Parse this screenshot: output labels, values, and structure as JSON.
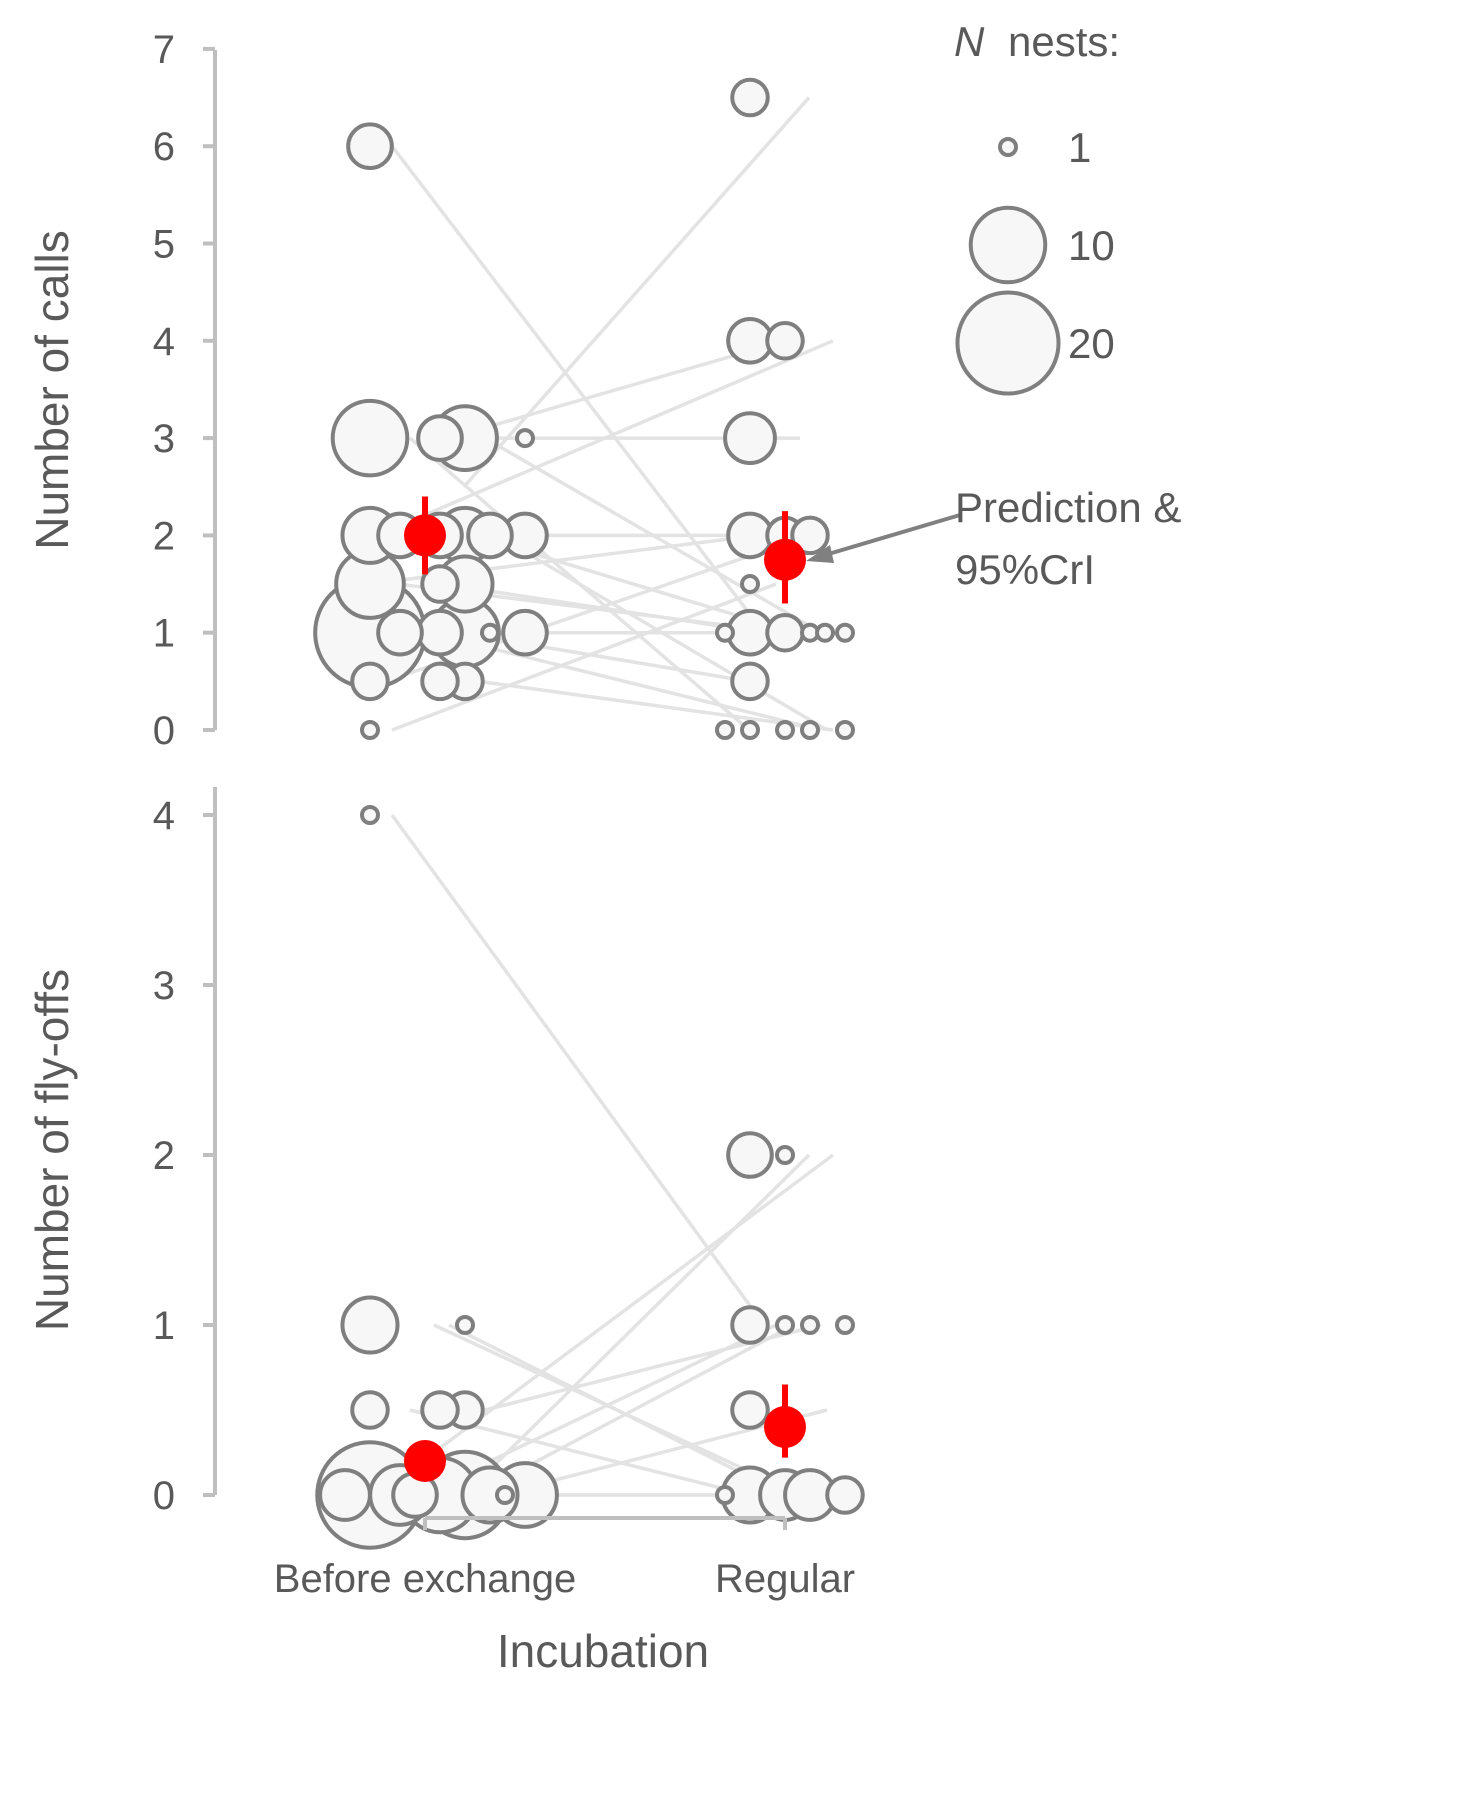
{
  "chart_data": [
    {
      "type": "scatter",
      "panel": "top",
      "ylabel": "Number of calls",
      "ylim": [
        0,
        7
      ],
      "yticks": [
        "0",
        "1",
        "2",
        "3",
        "4",
        "5",
        "6",
        "7"
      ],
      "categories": [
        "Before exchange",
        "Regular"
      ],
      "observations": {
        "Before exchange": [
          {
            "y": 6,
            "n": 3
          },
          {
            "y": 3,
            "n": 10
          },
          {
            "y": 3,
            "n": 7
          },
          {
            "y": 3,
            "n": 3
          },
          {
            "y": 3,
            "n": 1
          },
          {
            "y": 2,
            "n": 3
          },
          {
            "y": 2,
            "n": 3
          },
          {
            "y": 2,
            "n": 3
          },
          {
            "y": 2,
            "n": 3
          },
          {
            "y": 2,
            "n": 5
          },
          {
            "y": 2,
            "n": 5
          },
          {
            "y": 1.5,
            "n": 8
          },
          {
            "y": 1.5,
            "n": 5
          },
          {
            "y": 1.5,
            "n": 2
          },
          {
            "y": 1,
            "n": 24
          },
          {
            "y": 1,
            "n": 8
          },
          {
            "y": 1,
            "n": 3
          },
          {
            "y": 1,
            "n": 3
          },
          {
            "y": 1,
            "n": 3
          },
          {
            "y": 1,
            "n": 1
          },
          {
            "y": 0.5,
            "n": 2
          },
          {
            "y": 0.5,
            "n": 2
          },
          {
            "y": 0.5,
            "n": 2
          },
          {
            "y": 0,
            "n": 1
          }
        ],
        "Regular": [
          {
            "y": 6.5,
            "n": 2
          },
          {
            "y": 4,
            "n": 2
          },
          {
            "y": 4,
            "n": 3
          },
          {
            "y": 3,
            "n": 4
          },
          {
            "y": 2,
            "n": 2
          },
          {
            "y": 2,
            "n": 3
          },
          {
            "y": 2,
            "n": 2
          },
          {
            "y": 1.5,
            "n": 1
          },
          {
            "y": 1,
            "n": 1
          },
          {
            "y": 1,
            "n": 1
          },
          {
            "y": 1,
            "n": 1
          },
          {
            "y": 1,
            "n": 2
          },
          {
            "y": 1,
            "n": 3
          },
          {
            "y": 1,
            "n": 1
          },
          {
            "y": 0.5,
            "n": 2
          },
          {
            "y": 0,
            "n": 1
          },
          {
            "y": 0,
            "n": 1
          },
          {
            "y": 0,
            "n": 1
          },
          {
            "y": 0,
            "n": 1
          },
          {
            "y": 0,
            "n": 1
          }
        ]
      },
      "paired_lines": [
        [
          6,
          1
        ],
        [
          3,
          4
        ],
        [
          3,
          3
        ],
        [
          3,
          1
        ],
        [
          3,
          0
        ],
        [
          2.5,
          6.5
        ],
        [
          2,
          4
        ],
        [
          2,
          2
        ],
        [
          2,
          1
        ],
        [
          2,
          0
        ],
        [
          1.5,
          2
        ],
        [
          1.5,
          1
        ],
        [
          1.5,
          1
        ],
        [
          1,
          1
        ],
        [
          1,
          0
        ],
        [
          1,
          0.5
        ],
        [
          0.5,
          2
        ],
        [
          0.5,
          0
        ],
        [
          0,
          1.5
        ]
      ],
      "predictions": [
        {
          "category": "Before exchange",
          "value": 2.0,
          "lower": 1.6,
          "upper": 2.4
        },
        {
          "category": "Regular",
          "value": 1.75,
          "lower": 1.3,
          "upper": 2.25
        }
      ],
      "annotation": [
        "Prediction &",
        "95%CrI"
      ],
      "legend": {
        "title": "nests:",
        "title_italic": "N",
        "entries": [
          {
            "label": "1",
            "n": 1
          },
          {
            "label": "10",
            "n": 10
          },
          {
            "label": "20",
            "n": 20
          }
        ]
      },
      "colors": {
        "point_stroke": "#7f7f7f",
        "point_fill": "#f7f7f7",
        "line": "#e3e3e3",
        "prediction": "#ff0000",
        "axis": "#bfbfbf",
        "text": "#595959"
      }
    },
    {
      "type": "scatter",
      "panel": "bottom",
      "xlabel": "Incubation",
      "ylabel": "Number of fly-offs",
      "ylim": [
        0,
        4
      ],
      "yticks": [
        "0",
        "1",
        "2",
        "3",
        "4"
      ],
      "categories": [
        "Before exchange",
        "Regular"
      ],
      "observations": {
        "Before exchange": [
          {
            "y": 4,
            "n": 1
          },
          {
            "y": 1,
            "n": 1
          },
          {
            "y": 1,
            "n": 5
          },
          {
            "y": 0.5,
            "n": 2
          },
          {
            "y": 0.5,
            "n": 2
          },
          {
            "y": 0.5,
            "n": 2
          },
          {
            "y": 0,
            "n": 22
          },
          {
            "y": 0,
            "n": 14
          },
          {
            "y": 0,
            "n": 10
          },
          {
            "y": 0,
            "n": 7
          },
          {
            "y": 0,
            "n": 6
          },
          {
            "y": 0,
            "n": 5
          },
          {
            "y": 0,
            "n": 4
          },
          {
            "y": 0,
            "n": 3
          },
          {
            "y": 0,
            "n": 1
          }
        ],
        "Regular": [
          {
            "y": 2,
            "n": 1
          },
          {
            "y": 2,
            "n": 3
          },
          {
            "y": 1,
            "n": 1
          },
          {
            "y": 1,
            "n": 2
          },
          {
            "y": 1,
            "n": 1
          },
          {
            "y": 1,
            "n": 1
          },
          {
            "y": 0.5,
            "n": 2
          },
          {
            "y": 0,
            "n": 1
          },
          {
            "y": 0,
            "n": 4
          },
          {
            "y": 0,
            "n": 5
          },
          {
            "y": 0,
            "n": 2
          },
          {
            "y": 0,
            "n": 4
          }
        ]
      },
      "paired_lines": [
        [
          4,
          1
        ],
        [
          1,
          0
        ],
        [
          1,
          0
        ],
        [
          0.5,
          1
        ],
        [
          0.5,
          0
        ],
        [
          0,
          2
        ],
        [
          0,
          2
        ],
        [
          0,
          1
        ],
        [
          0,
          1
        ],
        [
          0,
          0.5
        ],
        [
          0,
          0
        ],
        [
          0,
          0
        ]
      ],
      "predictions": [
        {
          "category": "Before exchange",
          "value": 0.2,
          "lower": 0.12,
          "upper": 0.32
        },
        {
          "category": "Regular",
          "value": 0.4,
          "lower": 0.22,
          "upper": 0.65
        }
      ],
      "colors": {
        "point_stroke": "#7f7f7f",
        "point_fill": "#f7f7f7",
        "line": "#e3e3e3",
        "prediction": "#ff0000",
        "axis": "#bfbfbf",
        "text": "#595959"
      }
    }
  ]
}
